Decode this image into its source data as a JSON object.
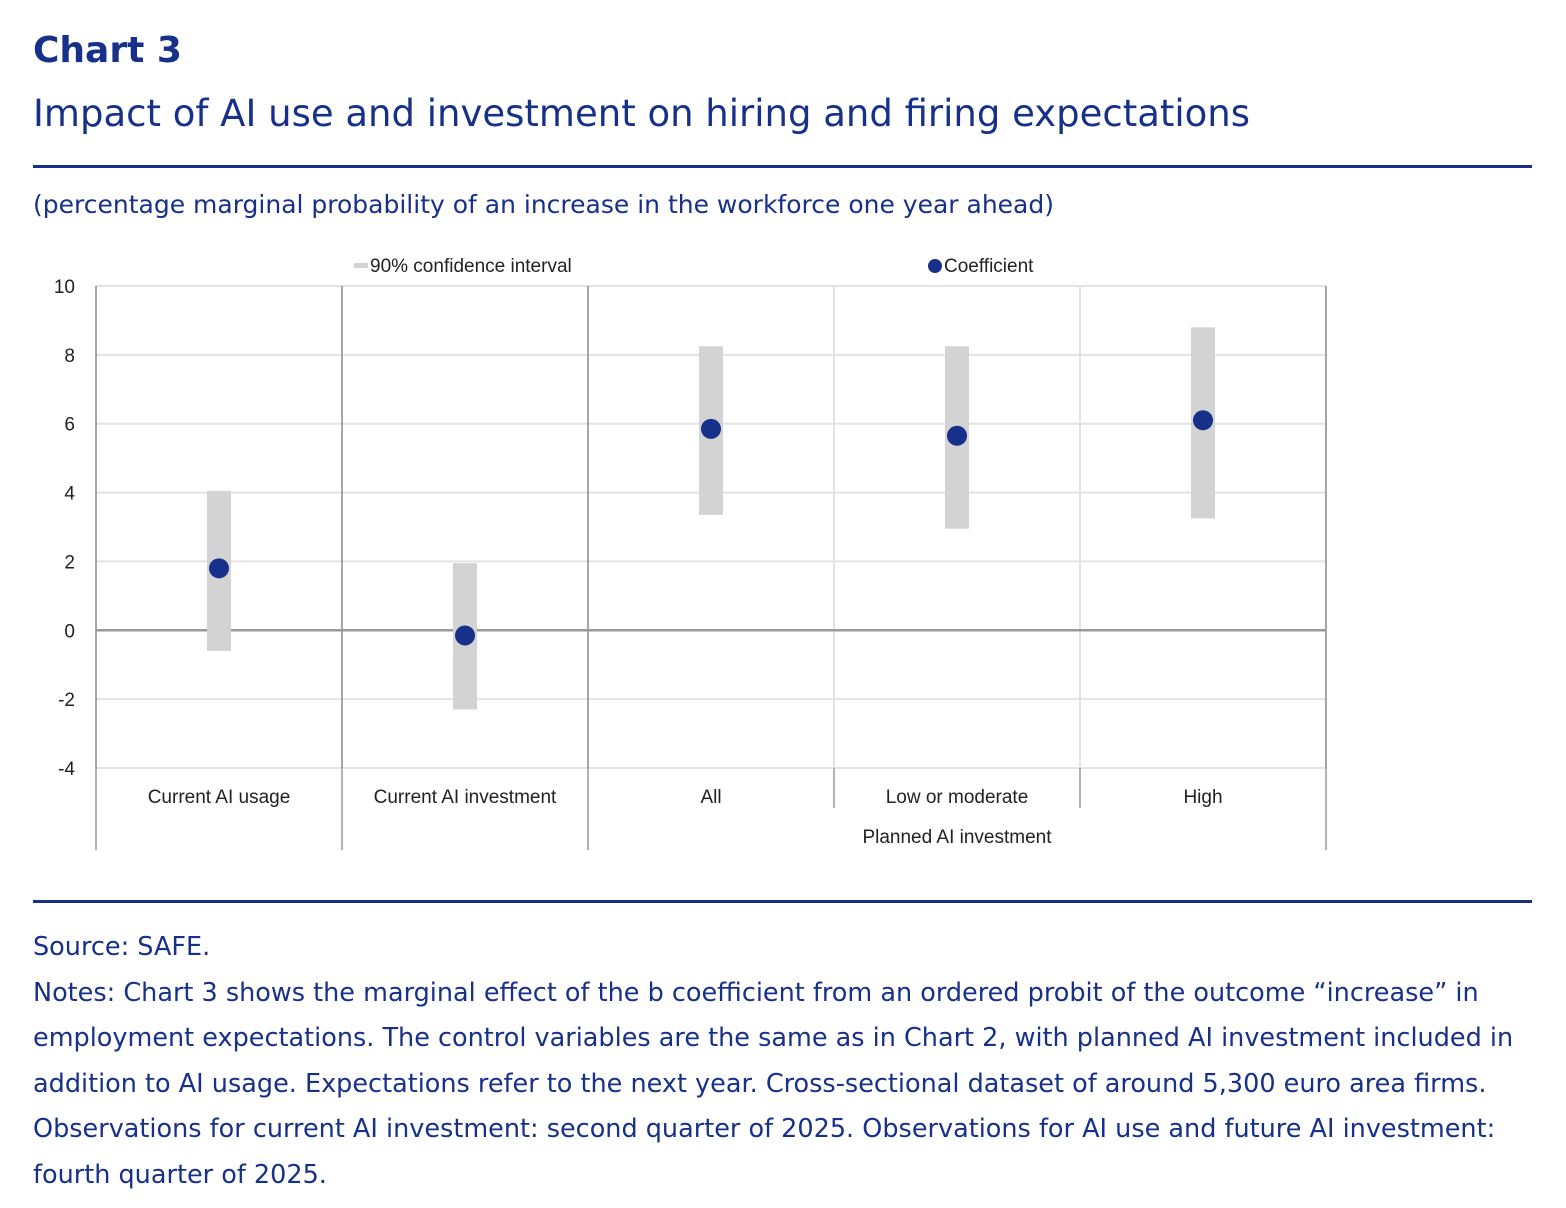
{
  "header": {
    "kicker": "Chart 3",
    "title": "Impact of AI use and investment on hiring and firing expectations",
    "subtitle": "(percentage marginal probability of an increase in the workforce one year ahead)"
  },
  "chart_data": {
    "type": "scatter",
    "title": "Impact of AI use and investment on hiring and firing expectations",
    "ylabel": "percentage marginal probability of an increase in the workforce one year ahead",
    "ylim": [
      -4,
      10
    ],
    "yticks": [
      "10",
      "8",
      "6",
      "4",
      "2",
      "0",
      "-2",
      "-4"
    ],
    "ytick_values": [
      10,
      8,
      6,
      4,
      2,
      0,
      -2,
      -4
    ],
    "grid": true,
    "legend": {
      "placement": "top",
      "entries": [
        "90% confidence interval",
        "Coefficient"
      ]
    },
    "categories": [
      "Current AI usage",
      "Current AI investment",
      "All",
      "Low or moderate",
      "High"
    ],
    "group_label": "Planned AI investment",
    "series": [
      {
        "name": "Coefficient",
        "values": [
          1.8,
          -0.15,
          5.85,
          5.65,
          6.1
        ]
      },
      {
        "name": "90% confidence interval",
        "lower": [
          -0.6,
          -2.3,
          3.35,
          2.95,
          3.25
        ],
        "upper": [
          4.05,
          1.95,
          8.25,
          8.25,
          8.8
        ]
      }
    ],
    "colors": {
      "coefficient": "#17318a",
      "interval": "#d3d3d3",
      "grid": "#e3e3e3",
      "axis": "#999999"
    }
  },
  "footer": {
    "source": "Source: SAFE.",
    "notes": "Notes: Chart 3 shows the marginal effect of the b coefficient from an ordered probit of the outcome “increase” in employment expectations. The control variables are the same as in Chart 2, with planned AI investment included in addition to AI usage. Expectations refer to the next year. Cross-sectional dataset of around 5,300 euro area firms. Observations for current AI investment: second quarter of 2025. Observations for AI use and future AI investment: fourth quarter of 2025."
  }
}
